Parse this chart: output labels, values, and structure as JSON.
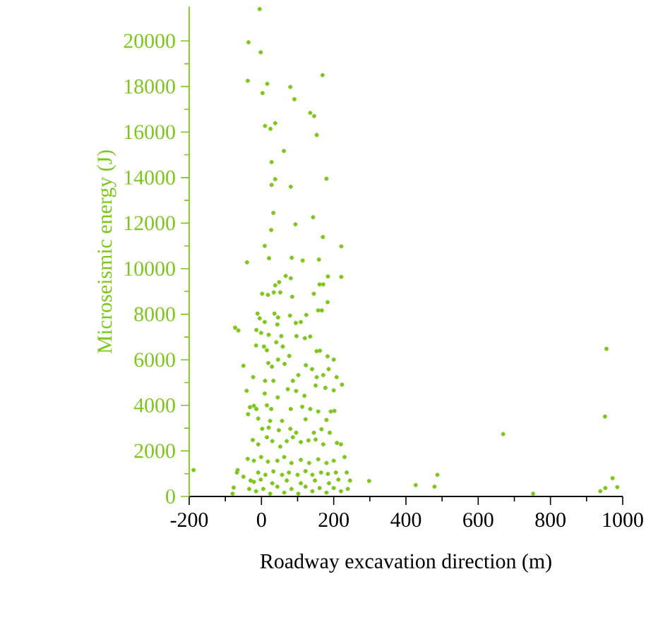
{
  "chart_data": {
    "type": "scatter",
    "xlabel": "Roadway excavation direction (m)",
    "ylabel": "Microseismic energy (J)",
    "xlim": [
      -200,
      1000
    ],
    "ylim": [
      0,
      21500
    ],
    "xticks": [
      -200,
      0,
      200,
      400,
      600,
      800,
      1000
    ],
    "yticks": [
      0,
      2000,
      4000,
      6000,
      8000,
      10000,
      12000,
      14000,
      16000,
      18000,
      20000
    ],
    "marker": "circle",
    "grid": false,
    "series": [
      {
        "color": "#7dc61c",
        "x": [
          -5,
          -36,
          -2,
          -38,
          16,
          3,
          80,
          169,
          91,
          135,
          146,
          10,
          38,
          25,
          153,
          62,
          28,
          38,
          28,
          81,
          180,
          33,
          143,
          27,
          94,
          170,
          221,
          9,
          -40,
          21,
          84,
          114,
          159,
          67,
          81,
          184,
          221,
          161,
          171,
          49,
          38,
          2,
          18,
          34,
          52,
          85,
          145,
          183,
          157,
          167,
          -11,
          -5,
          9,
          36,
          46,
          44,
          79,
          95,
          109,
          124,
          -73,
          -64,
          -14,
          -1,
          20,
          55,
          97,
          120,
          135,
          -15,
          7,
          15,
          41,
          59,
          153,
          162,
          77,
          19,
          29,
          46,
          64,
          123,
          140,
          183,
          186,
          200,
          -50,
          -23,
          -41,
          10,
          33,
          87,
          102,
          153,
          171,
          208,
          223,
          9,
          45,
          73,
          96,
          119,
          150,
          177,
          200,
          -21,
          -32,
          -14,
          -37,
          15,
          27,
          81,
          113,
          135,
          157,
          192,
          202,
          -9,
          24,
          57,
          122,
          180,
          2,
          20,
          48,
          80,
          96,
          145,
          166,
          189,
          -24,
          -9,
          15,
          30,
          52,
          70,
          87,
          109,
          130,
          150,
          171,
          209,
          220,
          230,
          -38,
          -21,
          -1,
          18,
          44,
          63,
          83,
          109,
          132,
          157,
          180,
          200,
          -188,
          -66,
          -68,
          -50,
          -30,
          -9,
          11,
          33,
          57,
          76,
          100,
          122,
          141,
          165,
          184,
          206,
          236,
          298,
          427,
          -77,
          -80,
          -34,
          -15,
          5,
          24,
          44,
          63,
          83,
          102,
          122,
          141,
          161,
          180,
          200,
          220,
          239,
          245,
          -21,
          -2,
          30,
          70,
          109,
          148,
          187,
          213,
          479,
          487,
          669,
          752,
          955,
          951,
          972,
          938,
          952,
          985
        ],
        "values": [
          21400,
          19940,
          19500,
          18250,
          18120,
          17710,
          17980,
          18500,
          17440,
          16840,
          16700,
          16270,
          16390,
          16140,
          15870,
          15170,
          14680,
          13930,
          13680,
          13600,
          13950,
          12450,
          12260,
          11700,
          11950,
          11390,
          10980,
          11000,
          10280,
          10460,
          10480,
          10360,
          10400,
          9680,
          9580,
          9660,
          9640,
          9310,
          9310,
          9410,
          9270,
          8900,
          8850,
          8960,
          8960,
          8770,
          8900,
          8530,
          8170,
          8170,
          8030,
          7820,
          7660,
          8030,
          7860,
          7550,
          7940,
          7620,
          7660,
          7970,
          7410,
          7290,
          7310,
          7180,
          7100,
          7040,
          7040,
          6950,
          7020,
          6630,
          6580,
          6420,
          6770,
          6580,
          6380,
          6400,
          6170,
          5860,
          5700,
          6010,
          5820,
          5760,
          5590,
          6150,
          5590,
          6010,
          5740,
          5240,
          4640,
          5080,
          5080,
          5080,
          5330,
          5240,
          5330,
          5240,
          4910,
          4520,
          4350,
          4710,
          4630,
          4420,
          4870,
          4770,
          4660,
          3980,
          3920,
          3840,
          3610,
          4000,
          3840,
          3840,
          3940,
          3840,
          3730,
          3730,
          3760,
          3420,
          3320,
          3320,
          3390,
          3360,
          2970,
          3020,
          2910,
          2970,
          2800,
          2800,
          2950,
          2800,
          2480,
          2290,
          2600,
          2430,
          2190,
          2430,
          2600,
          2390,
          2460,
          2500,
          2290,
          2350,
          2290,
          1730,
          1650,
          1570,
          1730,
          1530,
          1570,
          1730,
          1470,
          1610,
          1470,
          1630,
          1470,
          1570,
          1160,
          1160,
          1050,
          870,
          700,
          1050,
          950,
          1100,
          950,
          1050,
          950,
          1110,
          950,
          1050,
          990,
          1050,
          1050,
          680,
          500,
          390,
          120,
          330,
          230,
          330,
          120,
          430,
          170,
          330,
          120,
          430,
          230,
          370,
          170,
          370,
          230,
          330,
          700,
          640,
          740,
          580,
          700,
          580,
          700,
          580,
          740,
          430,
          950,
          2740,
          120,
          6480,
          3510,
          800,
          230,
          370,
          410
        ]
      }
    ]
  }
}
